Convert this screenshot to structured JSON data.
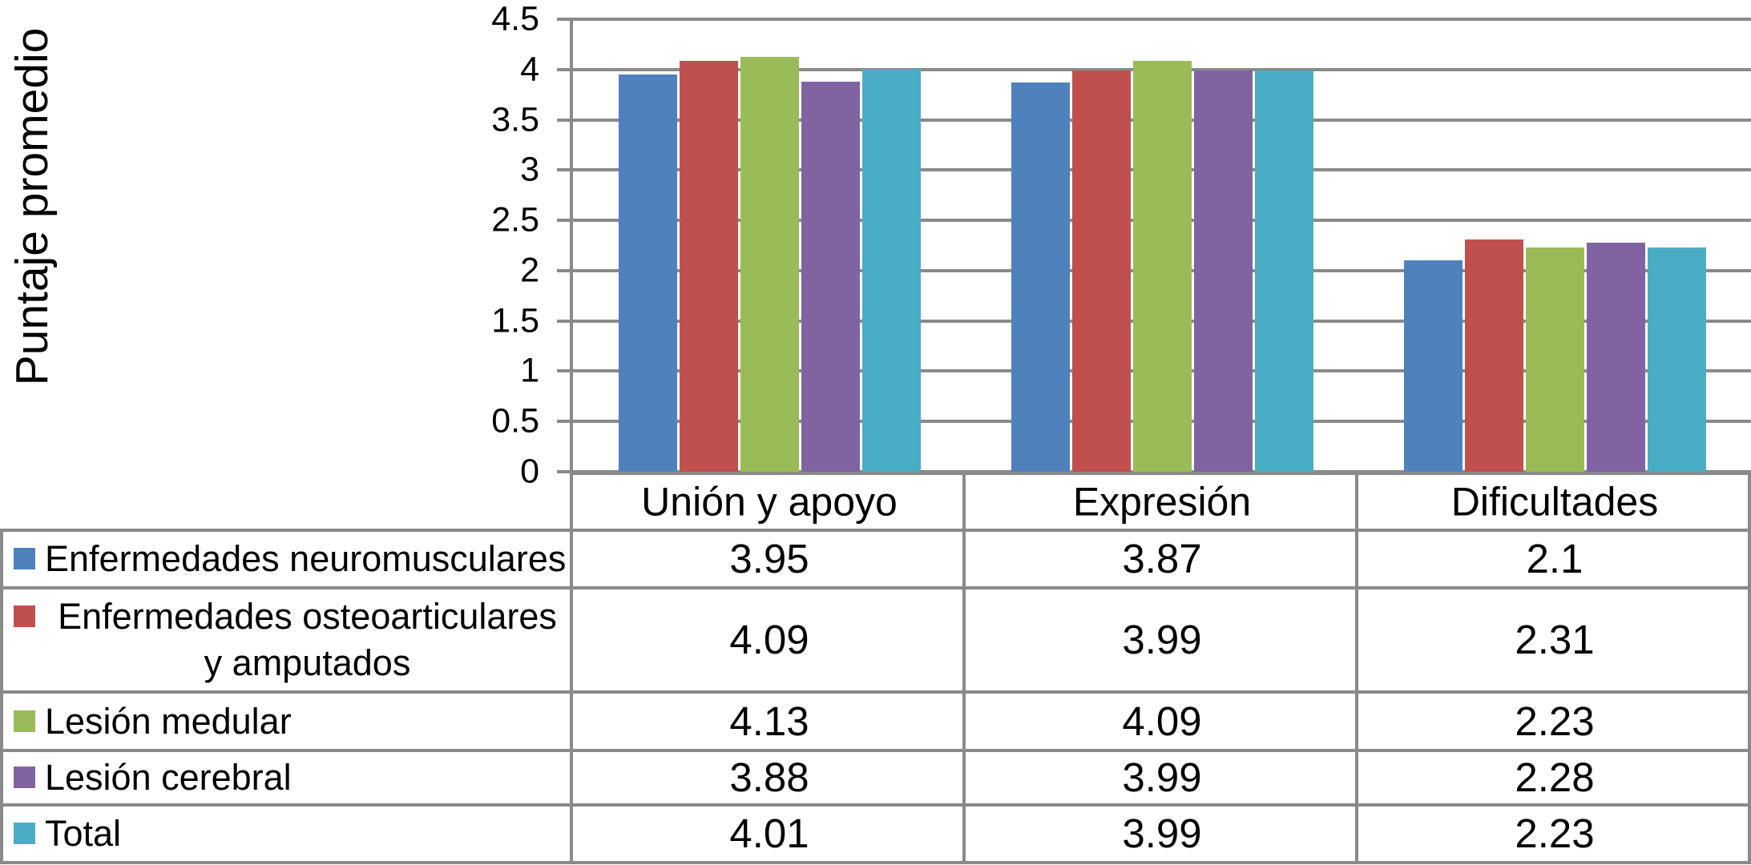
{
  "chart_data": {
    "type": "bar",
    "title": "",
    "xlabel": "",
    "ylabel": "Puntaje promedio",
    "ylim": [
      0,
      4.5
    ],
    "yticks": [
      4.5,
      4,
      3.5,
      3,
      2.5,
      2,
      1.5,
      1,
      0.5,
      0
    ],
    "grid": true,
    "legend_position": "data-table-left-column",
    "categories": [
      "Unión y apoyo",
      "Expresión",
      "Dificultades"
    ],
    "series": [
      {
        "name": "Enfermedades neuromusculares",
        "color": "#4F81BD",
        "values": [
          3.95,
          3.87,
          2.1
        ]
      },
      {
        "name": "Enfermedades osteoarticulares y amputados",
        "color": "#C0504D",
        "values": [
          4.09,
          3.99,
          2.31
        ]
      },
      {
        "name": "Lesión medular",
        "color": "#9BBB59",
        "values": [
          4.13,
          4.09,
          2.23
        ]
      },
      {
        "name": "Lesión cerebral",
        "color": "#8064A2",
        "values": [
          3.88,
          3.99,
          2.28
        ]
      },
      {
        "name": "Total",
        "color": "#4BACC6",
        "values": [
          4.01,
          3.99,
          2.23
        ]
      }
    ]
  },
  "colors": {
    "grid_and_borders": "#8a8a8a",
    "text": "#000000",
    "background": "#ffffff"
  }
}
